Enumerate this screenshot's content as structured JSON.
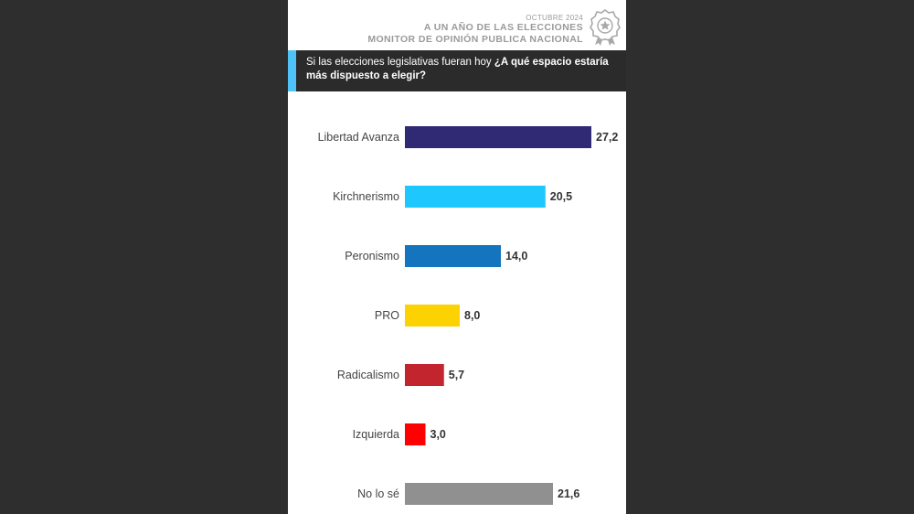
{
  "header": {
    "date": "OCTUBRE 2024",
    "title_line1": "A UN AÑO DE LAS ELECCIONES",
    "title_line2": "MONITOR DE OPINIÓN PUBLICA NACIONAL",
    "badge_icon": "award-ribbon-icon"
  },
  "question": {
    "prefix": "Si las elecciones legislativas fueran hoy ",
    "emphasis": "¿A qué espacio estaría más dispuesto a elegir?"
  },
  "colors": {
    "background": "#2e2e2e",
    "question_bar": "#2b2b2b",
    "accent": "#4fc3f7"
  },
  "chart_data": {
    "type": "bar",
    "orientation": "horizontal",
    "categories": [
      "Libertad Avanza",
      "Kirchnerismo",
      "Peronismo",
      "PRO",
      "Radicalismo",
      "Izquierda",
      "No lo sé"
    ],
    "values": [
      27.2,
      20.5,
      14.0,
      8.0,
      5.7,
      3.0,
      21.6
    ],
    "value_labels": [
      "27,2",
      "20,5",
      "14,0",
      "8,0",
      "5,7",
      "3,0",
      "21,6"
    ],
    "colors": [
      "#2f2a73",
      "#1ec8ff",
      "#1474bd",
      "#fdd203",
      "#c3252f",
      "#ff0000",
      "#909090"
    ],
    "grid": false,
    "legend": "none",
    "xlim": [
      0,
      27.2
    ]
  }
}
